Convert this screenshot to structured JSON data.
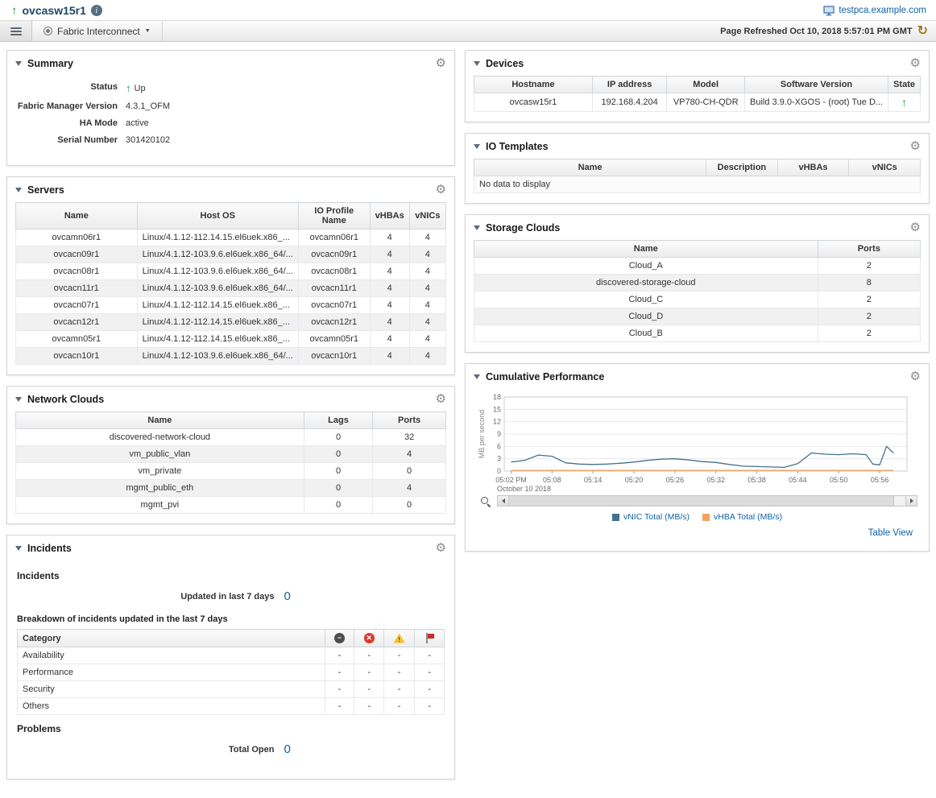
{
  "header": {
    "title": "ovcasw15r1",
    "host_link": "testpca.example.com",
    "nav_label": "Fabric Interconnect",
    "page_refreshed": "Page Refreshed Oct 10, 2018 5:57:01 PM GMT"
  },
  "summary": {
    "title": "Summary",
    "status_label": "Status",
    "status_value": "Up",
    "fm_version_label": "Fabric Manager Version",
    "fm_version_value": "4.3.1_OFM",
    "ha_mode_label": "HA Mode",
    "ha_mode_value": "active",
    "serial_label": "Serial Number",
    "serial_value": "301420102"
  },
  "servers": {
    "title": "Servers",
    "columns": [
      "Name",
      "Host OS",
      "IO Profile Name",
      "vHBAs",
      "vNICs"
    ],
    "rows": [
      [
        "ovcamn06r1",
        "Linux/4.1.12-112.14.15.el6uek.x86_...",
        "ovcamn06r1",
        "4",
        "4"
      ],
      [
        "ovcacn09r1",
        "Linux/4.1.12-103.9.6.el6uek.x86_64/...",
        "ovcacn09r1",
        "4",
        "4"
      ],
      [
        "ovcacn08r1",
        "Linux/4.1.12-103.9.6.el6uek.x86_64/...",
        "ovcacn08r1",
        "4",
        "4"
      ],
      [
        "ovcacn11r1",
        "Linux/4.1.12-103.9.6.el6uek.x86_64/...",
        "ovcacn11r1",
        "4",
        "4"
      ],
      [
        "ovcacn07r1",
        "Linux/4.1.12-112.14.15.el6uek.x86_...",
        "ovcacn07r1",
        "4",
        "4"
      ],
      [
        "ovcacn12r1",
        "Linux/4.1.12-112.14.15.el6uek.x86_...",
        "ovcacn12r1",
        "4",
        "4"
      ],
      [
        "ovcamn05r1",
        "Linux/4.1.12-112.14.15.el6uek.x86_...",
        "ovcamn05r1",
        "4",
        "4"
      ],
      [
        "ovcacn10r1",
        "Linux/4.1.12-103.9.6.el6uek.x86_64/...",
        "ovcacn10r1",
        "4",
        "4"
      ]
    ]
  },
  "network_clouds": {
    "title": "Network Clouds",
    "columns": [
      "Name",
      "Lags",
      "Ports"
    ],
    "rows": [
      [
        "discovered-network-cloud",
        "0",
        "32"
      ],
      [
        "vm_public_vlan",
        "0",
        "4"
      ],
      [
        "vm_private",
        "0",
        "0"
      ],
      [
        "mgmt_public_eth",
        "0",
        "4"
      ],
      [
        "mgmt_pvi",
        "0",
        "0"
      ]
    ]
  },
  "incidents": {
    "title": "Incidents",
    "section_incidents": "Incidents",
    "updated_label": "Updated in last 7 days",
    "updated_value": "0",
    "breakdown_label": "Breakdown of incidents updated in the last 7 days",
    "breakdown": {
      "columns": [
        "Category",
        {
          "icon": "minus-circle"
        },
        {
          "icon": "critical-circle"
        },
        {
          "icon": "warning-triangle"
        },
        {
          "icon": "red-flag"
        }
      ],
      "rows": [
        [
          "Availability",
          "-",
          "-",
          "-",
          "-"
        ],
        [
          "Performance",
          "-",
          "-",
          "-",
          "-"
        ],
        [
          "Security",
          "-",
          "-",
          "-",
          "-"
        ],
        [
          "Others",
          "-",
          "-",
          "-",
          "-"
        ]
      ]
    },
    "section_problems": "Problems",
    "total_open_label": "Total Open",
    "total_open_value": "0"
  },
  "devices": {
    "title": "Devices",
    "columns": [
      "Hostname",
      "IP address",
      "Model",
      "Software Version",
      "State"
    ],
    "rows": [
      [
        "ovcasw15r1",
        "192.168.4.204",
        "VP780-CH-QDR",
        "Build 3.9.0-XGOS - (root) Tue D...",
        {
          "icon": "up-arrow"
        }
      ]
    ]
  },
  "io_templates": {
    "title": "IO Templates",
    "columns": [
      "Name",
      "Description",
      "vHBAs",
      "vNICs"
    ],
    "rows": [],
    "empty_text": "No data to display"
  },
  "storage_clouds": {
    "title": "Storage Clouds",
    "columns": [
      "Name",
      "Ports"
    ],
    "rows": [
      [
        "Cloud_A",
        "2"
      ],
      [
        "discovered-storage-cloud",
        "8"
      ],
      [
        "Cloud_C",
        "2"
      ],
      [
        "Cloud_D",
        "2"
      ],
      [
        "Cloud_B",
        "2"
      ]
    ]
  },
  "performance": {
    "title": "Cumulative Performance",
    "table_view_label": "Table View"
  },
  "chart_data": {
    "type": "line",
    "title": "Cumulative Performance",
    "xlabel": "",
    "ylabel": "MB per second",
    "ylim": [
      0,
      18
    ],
    "y_ticks": [
      0,
      3,
      6,
      9,
      12,
      15,
      18
    ],
    "grid": true,
    "legend_position": "bottom",
    "x_range_minutes": [
      1,
      60
    ],
    "x_tick_minutes": [
      2,
      8,
      14,
      20,
      26,
      32,
      38,
      44,
      50,
      56
    ],
    "x_tick_labels": [
      "05:02 PM",
      "05:08",
      "05:14",
      "05:20",
      "05:26",
      "05:32",
      "05:38",
      "05:44",
      "05:50",
      "05:56"
    ],
    "x_date_label": "October 10 2018",
    "series": [
      {
        "name": "vNIC Total (MB/s)",
        "color": "#44718e",
        "x": [
          2,
          4,
          6,
          8,
          10,
          12,
          14,
          16,
          18,
          20,
          22,
          24,
          26,
          28,
          30,
          32,
          34,
          36,
          38,
          40,
          42,
          44,
          46,
          48,
          50,
          52,
          54,
          55,
          56,
          57,
          58
        ],
        "values": [
          2.2,
          2.6,
          3.9,
          3.6,
          2.0,
          1.7,
          1.6,
          1.7,
          1.9,
          2.2,
          2.6,
          2.9,
          3.0,
          2.7,
          2.3,
          2.1,
          1.6,
          1.2,
          1.1,
          1.0,
          0.9,
          1.8,
          4.4,
          4.1,
          4.0,
          4.2,
          4.0,
          1.7,
          1.5,
          6.0,
          4.4
        ]
      },
      {
        "name": "vHBA Total (MB/s)",
        "color": "#f0a35e",
        "x": [
          2,
          58
        ],
        "values": [
          0.15,
          0.15
        ]
      }
    ]
  }
}
